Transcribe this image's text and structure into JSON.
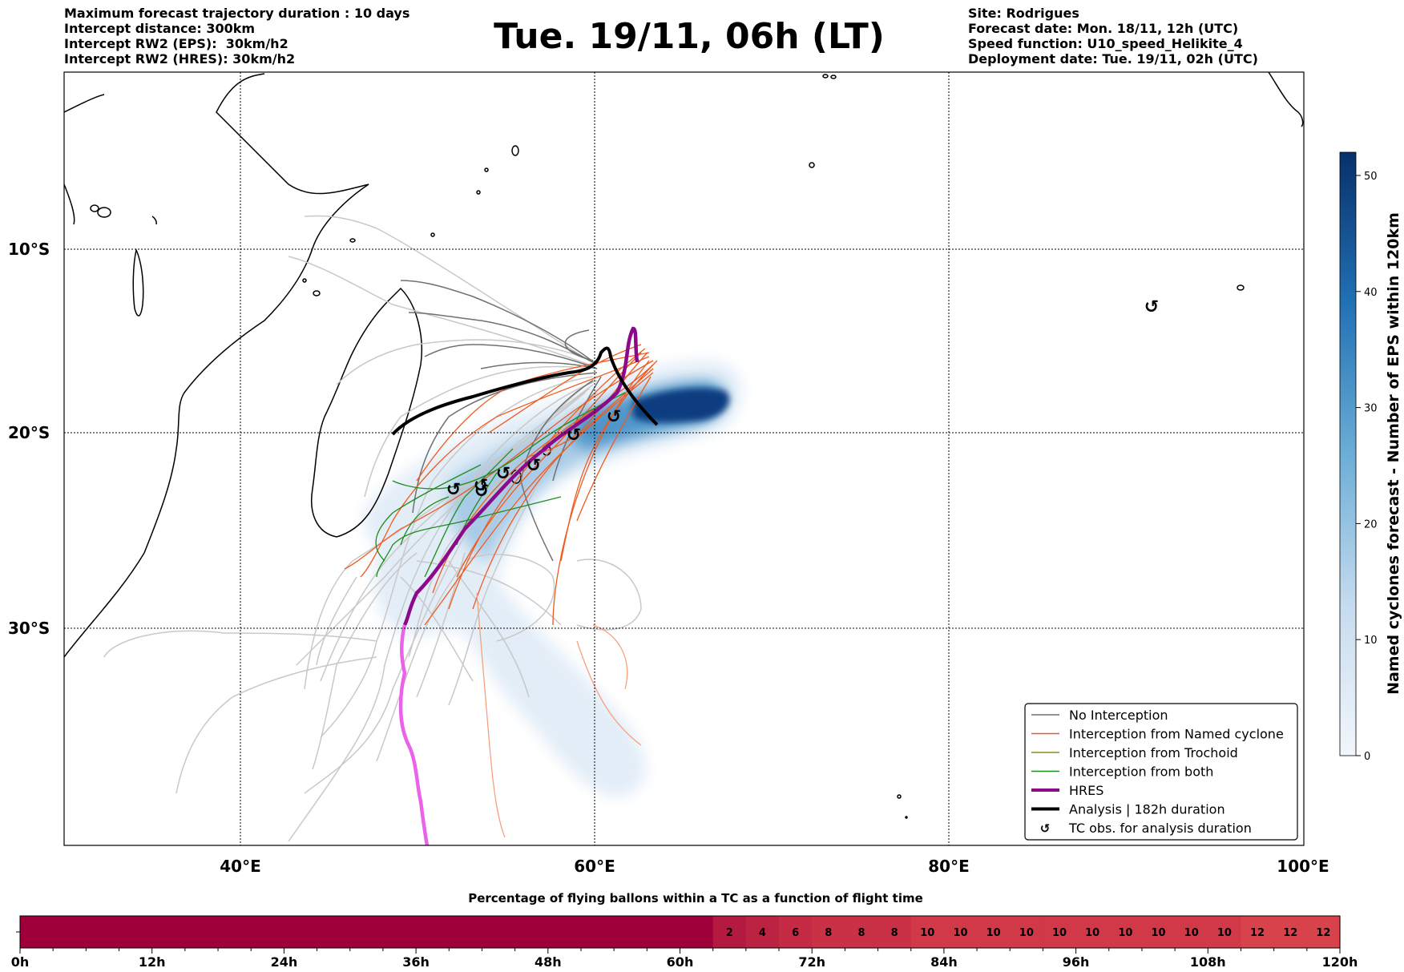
{
  "header": {
    "left_lines": [
      "Maximum forecast trajectory duration : 10 days",
      "Intercept distance: 300km",
      "Intercept RW2 (EPS):  30km/h2",
      "Intercept RW2 (HRES): 30km/h2"
    ],
    "title": "Tue. 19/11, 06h (LT)",
    "right_lines": [
      "Site: Rodrigues",
      "Forecast date: Mon. 18/11, 12h (UTC)",
      "Speed function: U10_speed_Helikite_4",
      "Deployment date: Tue. 19/11, 02h (UTC)"
    ]
  },
  "map": {
    "lat_labels": [
      "10°S",
      "20°S",
      "30°S"
    ],
    "lon_labels": [
      "40°E",
      "60°E",
      "80°E",
      "100°E"
    ],
    "tc_symbol": "↺"
  },
  "legend": {
    "items": [
      {
        "label": "No Interception",
        "color": "#707070",
        "style": "thin"
      },
      {
        "label": "Interception from Named cyclone",
        "color": "#f05a1e",
        "style": "thin"
      },
      {
        "label": "Interception from Trochoid",
        "color": "#8c8c1e",
        "style": "thin"
      },
      {
        "label": "Interception from both",
        "color": "#1e8c1e",
        "style": "thin"
      },
      {
        "label": "HRES",
        "color": "#8b0a8b",
        "style": "thick"
      },
      {
        "label": "Analysis | 182h duration",
        "color": "#000000",
        "style": "thick"
      },
      {
        "label": "TC obs. for analysis duration",
        "color": "#000000",
        "style": "symbol"
      }
    ]
  },
  "colorbar": {
    "title": "Named cyclones forecast - Number of EPS within 120km",
    "ticks": [
      "0",
      "10",
      "20",
      "30",
      "40",
      "50"
    ],
    "max": 52,
    "color_low": "#f2f6fb",
    "color_high": "#08306b"
  },
  "time_bar": {
    "title": "Percentage of flying ballons within a TC as a function of flight time",
    "tick_labels": [
      "0h",
      "12h",
      "24h",
      "36h",
      "48h",
      "60h",
      "72h",
      "84h",
      "96h",
      "108h",
      "120h"
    ],
    "cell_hours": 3,
    "values": [
      0,
      0,
      0,
      0,
      0,
      0,
      0,
      0,
      0,
      0,
      0,
      0,
      0,
      0,
      0,
      0,
      0,
      0,
      0,
      0,
      0,
      2,
      4,
      6,
      8,
      8,
      8,
      10,
      10,
      10,
      10,
      10,
      10,
      10,
      10,
      10,
      10,
      12,
      12,
      12
    ],
    "colors": {
      "0": "#a0003a",
      "2": "#b41a40",
      "4": "#bc2242",
      "6": "#c42a44",
      "8": "#ca3046",
      "10": "#d13848",
      "12": "#d8424a"
    }
  }
}
